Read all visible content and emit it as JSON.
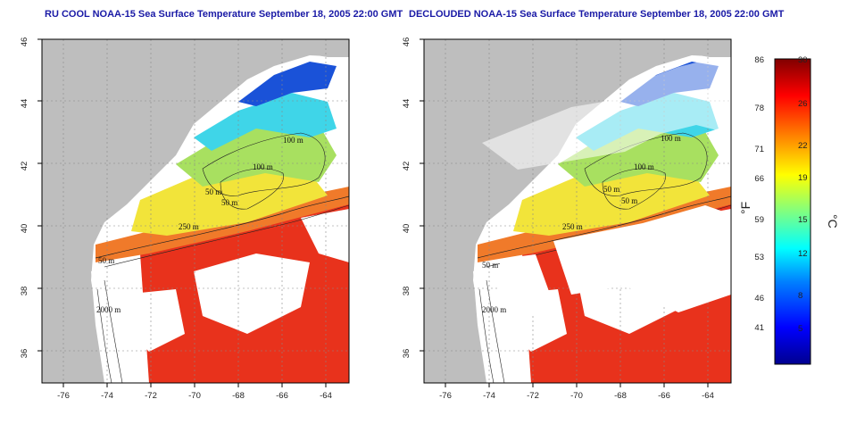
{
  "maps": [
    {
      "title": "RU COOL NOAA-15 Sea Surface Temperature September 18, 2005 22:00 GMT",
      "contours": [
        "100 m",
        "100 m",
        "50 m",
        "50 m",
        "250 m",
        "50 m",
        "2000 m"
      ]
    },
    {
      "title": "DECLOUDED NOAA-15 Sea Surface Temperature September 18, 2005 22:00 GMT",
      "contours": [
        "100 m",
        "100 m",
        "50 m",
        "50 m",
        "250 m",
        "50 m",
        "2000 m"
      ]
    }
  ],
  "x_ticks": [
    "-76",
    "-74",
    "-72",
    "-70",
    "-68",
    "-66",
    "-64"
  ],
  "y_ticks": [
    "46",
    "44",
    "42",
    "40",
    "38",
    "36"
  ],
  "colorbar": {
    "fahrenheit_unit": "°F",
    "celsius_unit": "°C",
    "fahrenheit_labels": [
      "86",
      "78",
      "71",
      "66",
      "59",
      "53",
      "46",
      "41"
    ],
    "celsius_labels": [
      "30",
      "26",
      "22",
      "19",
      "15",
      "12",
      "8",
      "5"
    ],
    "range_c": [
      2,
      30
    ],
    "colors": [
      "#00008f",
      "#0000ff",
      "#0080ff",
      "#00ffff",
      "#80ff80",
      "#ffff00",
      "#ff8000",
      "#ff0000",
      "#800000"
    ]
  },
  "colors": {
    "land": "#bebebe",
    "cloud": "#ffffff",
    "warm_water": "#e8321c",
    "orange_water": "#f07a2a",
    "yellow_water": "#f2e43a",
    "green_water": "#a8e060",
    "cyan_water": "#3fd5e8",
    "blue_water": "#1a52d8",
    "title_color": "#1a1aa6"
  }
}
